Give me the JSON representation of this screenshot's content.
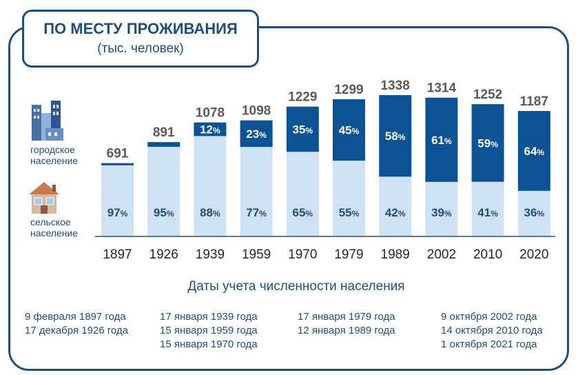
{
  "header": {
    "title": "ПО МЕСТУ ПРОЖИВАНИЯ",
    "subtitle": "(тыс. человек)"
  },
  "legend": {
    "urban": "городское население",
    "rural": "сельское население",
    "urban_icon": "city-buildings-icon",
    "rural_icon": "house-icon"
  },
  "colors": {
    "urban": "#0b5394",
    "rural": "#cfe2f3",
    "text": "#1f4e79",
    "total_label": "#595959"
  },
  "chart_data": {
    "type": "bar",
    "stacked": true,
    "categories": [
      "1897",
      "1926",
      "1939",
      "1959",
      "1970",
      "1979",
      "1989",
      "2002",
      "2010",
      "2020"
    ],
    "totals": [
      691,
      891,
      1078,
      1098,
      1229,
      1299,
      1338,
      1314,
      1252,
      1187
    ],
    "series": [
      {
        "name": "городское население",
        "percent": [
          3,
          5,
          12,
          23,
          35,
          45,
          58,
          61,
          59,
          64
        ]
      },
      {
        "name": "сельское население",
        "percent": [
          97,
          95,
          88,
          77,
          65,
          55,
          42,
          39,
          41,
          36
        ]
      }
    ],
    "urban_labels": [
      "",
      "",
      "12%",
      "23%",
      "35%",
      "45%",
      "58%",
      "61%",
      "59%",
      "64%"
    ],
    "rural_labels": [
      "97%",
      "95%",
      "88%",
      "77%",
      "65%",
      "55%",
      "42%",
      "39%",
      "41%",
      "36%"
    ],
    "xlabel": "Даты учета численности населения",
    "ylim": [
      0,
      1338
    ]
  },
  "census_dates": [
    [
      "9 февраля 1897 года",
      "17 декабря 1926 года"
    ],
    [
      "17 января 1939 года",
      "15 января 1959 года",
      "15 января 1970 года"
    ],
    [
      "17 января 1979 года",
      "12 января 1989 года"
    ],
    [
      "9 октября 2002 года",
      "14 октября 2010 года",
      "1 октября 2021 года"
    ]
  ]
}
